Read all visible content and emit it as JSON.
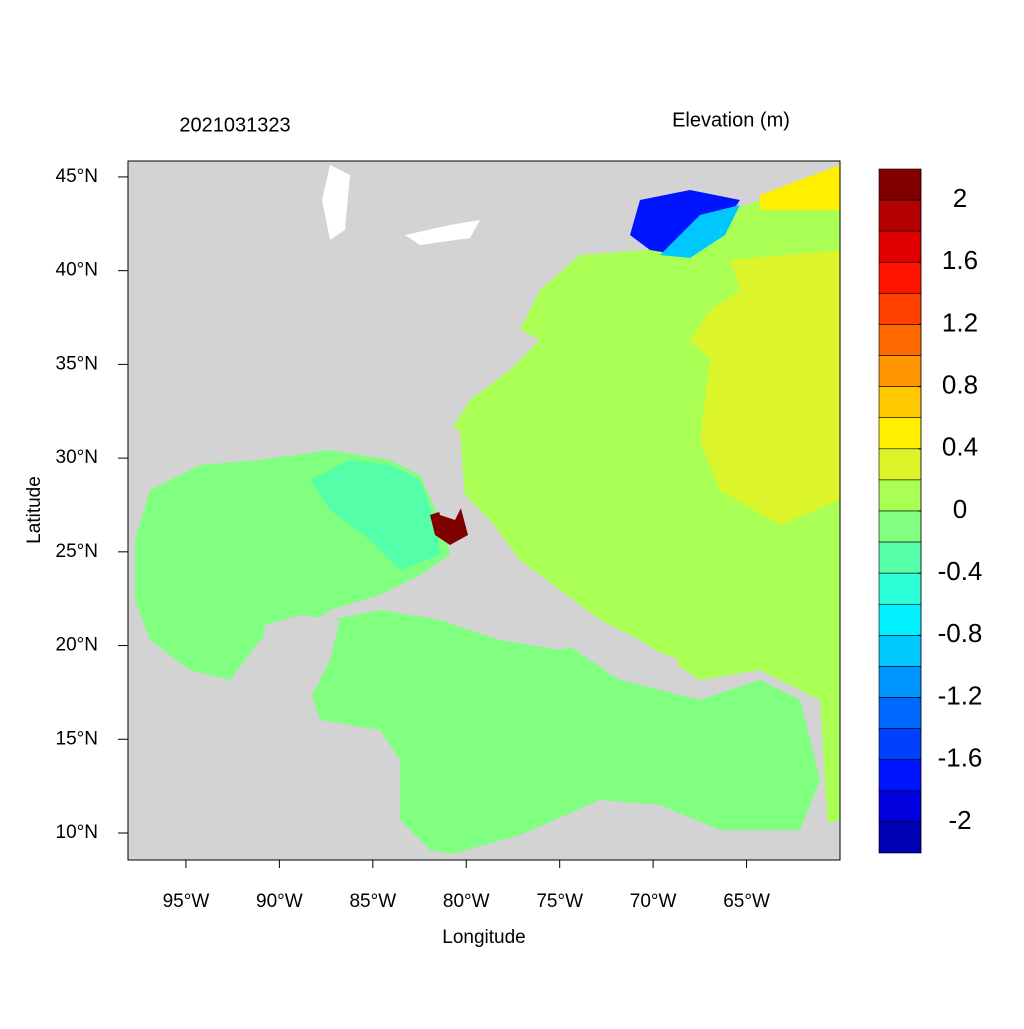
{
  "chart_data": {
    "type": "map",
    "title": "2021031323",
    "subtitle": "Elevation (m)",
    "xlabel": "Longitude",
    "ylabel": "Latitude",
    "xlim": [
      -98.1,
      -60
    ],
    "ylim": [
      8.56,
      45.85
    ],
    "xticks": [
      {
        "value": -95,
        "label": "95°W"
      },
      {
        "value": -90,
        "label": "90°W"
      },
      {
        "value": -85,
        "label": "85°W"
      },
      {
        "value": -80,
        "label": "80°W"
      },
      {
        "value": -75,
        "label": "75°W"
      },
      {
        "value": -70,
        "label": "70°W"
      },
      {
        "value": -65,
        "label": "65°W"
      }
    ],
    "yticks": [
      {
        "value": 10,
        "label": "10°N"
      },
      {
        "value": 15,
        "label": "15°N"
      },
      {
        "value": 20,
        "label": "20°N"
      },
      {
        "value": 25,
        "label": "25°N"
      },
      {
        "value": 30,
        "label": "30°N"
      },
      {
        "value": 35,
        "label": "35°N"
      },
      {
        "value": 40,
        "label": "40°N"
      },
      {
        "value": 45,
        "label": "45°N"
      }
    ],
    "colorbar": {
      "range": [
        -2.2,
        2.2
      ],
      "ticks": [
        2,
        1.6,
        1.2,
        0.8,
        0.4,
        0,
        -0.4,
        -0.8,
        -1.2,
        -1.6,
        -2
      ],
      "colors": [
        "#800000",
        "#b40000",
        "#e00000",
        "#ff1400",
        "#ff4000",
        "#ff6a00",
        "#ff9600",
        "#ffc800",
        "#fff000",
        "#dcf52a",
        "#aaff55",
        "#80ff80",
        "#55ffaa",
        "#2affd5",
        "#00f0ff",
        "#00c8ff",
        "#0096ff",
        "#006aff",
        "#0040ff",
        "#0014ff",
        "#0000df",
        "#0000b4"
      ]
    }
  }
}
